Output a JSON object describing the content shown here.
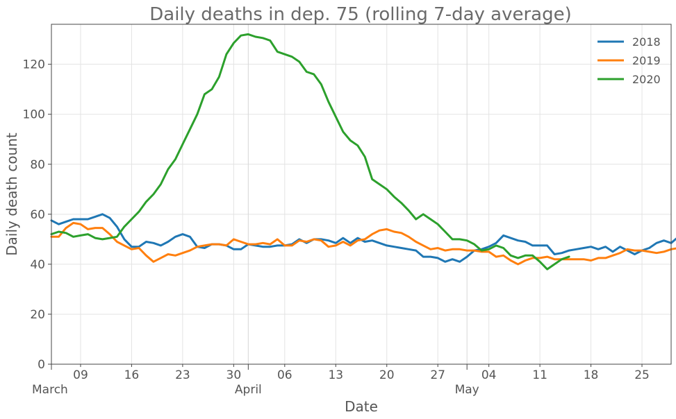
{
  "chart_data": {
    "type": "line",
    "title": "Daily deaths in dep. 75 (rolling 7-day average)",
    "xlabel": "Date",
    "ylabel": "Daily death count",
    "ylim": [
      0,
      136
    ],
    "xlim": [
      "2020-03-05",
      "2020-05-29"
    ],
    "y_ticks": [
      0,
      20,
      40,
      60,
      80,
      100,
      120
    ],
    "x_ticks": [
      {
        "date": "2020-03-09",
        "label": "09"
      },
      {
        "date": "2020-03-16",
        "label": "16"
      },
      {
        "date": "2020-03-23",
        "label": "23"
      },
      {
        "date": "2020-03-30",
        "label": "30"
      },
      {
        "date": "2020-04-06",
        "label": "06"
      },
      {
        "date": "2020-04-13",
        "label": "13"
      },
      {
        "date": "2020-04-20",
        "label": "20"
      },
      {
        "date": "2020-04-27",
        "label": "27"
      },
      {
        "date": "2020-05-04",
        "label": "04"
      },
      {
        "date": "2020-05-11",
        "label": "11"
      },
      {
        "date": "2020-05-18",
        "label": "18"
      },
      {
        "date": "2020-05-25",
        "label": "25"
      }
    ],
    "month_ticks": [
      {
        "date": "2020-03-05",
        "label": "March"
      },
      {
        "date": "2020-04-01",
        "label": "April"
      },
      {
        "date": "2020-05-01",
        "label": "May"
      }
    ],
    "grid": true,
    "legend_position": "top-right",
    "x_start": "2020-03-05",
    "x_step_days": 1,
    "series": [
      {
        "name": "2018",
        "color": "#1f77b4",
        "values": [
          57.5,
          56,
          57,
          58,
          58,
          58,
          59,
          60,
          58.5,
          55,
          50,
          47,
          47,
          49,
          48.5,
          47.5,
          49,
          51,
          52,
          51,
          47,
          46.5,
          48,
          48,
          47.5,
          46,
          46,
          48,
          47.5,
          47,
          47,
          47.5,
          47.5,
          48,
          50,
          48.5,
          50,
          50,
          49.5,
          48.5,
          50.5,
          48.5,
          50.5,
          49,
          49.5,
          48.5,
          47.5,
          47,
          46.5,
          46,
          45.5,
          43,
          43,
          42.5,
          41,
          42,
          41,
          43,
          45.5,
          46,
          47,
          48.5,
          51.5,
          50.5,
          49.5,
          49,
          47.5,
          47.5,
          47.5,
          44,
          44.5,
          45.5,
          46,
          46.5,
          47,
          46,
          47,
          45,
          47,
          45.5,
          44,
          45.5,
          46.5,
          48.5,
          49.5,
          48.5,
          51
        ]
      },
      {
        "name": "2019",
        "color": "#ff7f0e",
        "values": [
          51,
          51,
          54.5,
          56.5,
          56,
          54,
          54.5,
          54.5,
          52,
          49,
          47.5,
          46,
          46.5,
          43.5,
          41,
          42.5,
          44,
          43.5,
          44.5,
          45.5,
          47,
          47.5,
          48,
          48,
          47.5,
          50,
          49,
          48,
          48,
          48.5,
          48,
          50,
          47.5,
          47.5,
          49.5,
          49,
          50,
          49.5,
          47,
          47.5,
          49,
          47.5,
          49.5,
          50,
          52,
          53.5,
          54,
          53,
          52.5,
          51,
          49,
          47.5,
          46,
          46.5,
          45.5,
          46,
          46,
          45.5,
          45.5,
          45,
          45,
          43,
          43.5,
          41.5,
          40,
          41.5,
          42.5,
          42.5,
          43,
          42,
          42,
          42,
          42,
          42,
          41.5,
          42.5,
          42.5,
          43.5,
          44.5,
          46,
          45.5,
          45.5,
          45,
          44.5,
          45,
          46,
          46.5,
          45.5
        ]
      },
      {
        "name": "2020",
        "color": "#2ca02c",
        "values": [
          52,
          53,
          52.5,
          51,
          51.5,
          52,
          50.5,
          50,
          50.5,
          51,
          55,
          58,
          61,
          65,
          68,
          72,
          78,
          82,
          88,
          94,
          100,
          108,
          110,
          115,
          124,
          128.5,
          131.5,
          132,
          131,
          130.5,
          129.5,
          125,
          124,
          123,
          121,
          117,
          116,
          112,
          105,
          99,
          93,
          89.5,
          87.5,
          83,
          74,
          72,
          70,
          67,
          64.5,
          61.5,
          58,
          60,
          58,
          56,
          53,
          50,
          50,
          49.5,
          48,
          45.5,
          46,
          47.5,
          46.5,
          43.5,
          42.5,
          43.5,
          43.5,
          41,
          38,
          40,
          42,
          43
        ]
      }
    ]
  }
}
